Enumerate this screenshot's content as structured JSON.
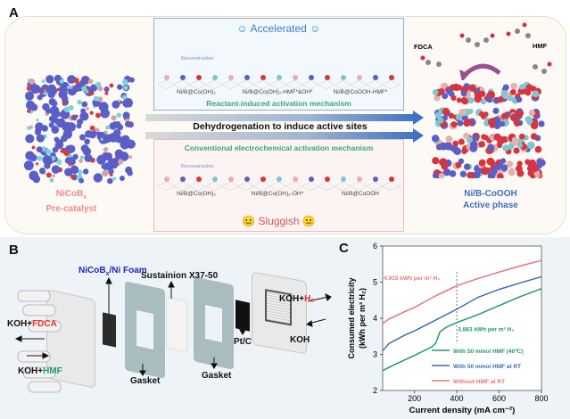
{
  "panels": {
    "a": "A",
    "b": "B",
    "c": "C"
  },
  "panel_a": {
    "precatalyst": {
      "name": "NiCoB",
      "subscript": "x",
      "label": "Pre-catalyst"
    },
    "accelerated": {
      "title": "Accelerated",
      "icon": "smiley-face-icon",
      "mechanism": "Reactant-induced activation mechanism",
      "reconstruction": "Reconstruction",
      "states": [
        "Ni/B@Co(OH)₂",
        "Ni/B@Co(OH)₂-HMF*&OH*",
        "Ni/B@CoOOH-HMF*"
      ]
    },
    "arrow_text": "Dehydrogenation to induce active sites",
    "sluggish": {
      "title": "Sluggish",
      "icon": "neutral-face-icon",
      "mechanism": "Conventional electrochemical activation mechanism",
      "reconstruction": "Reconstruction",
      "states": [
        "Ni/B@Co(OH)₂",
        "Ni/B@Co(OH)₂-OH*",
        "Ni/B@CoOOH"
      ]
    },
    "active": {
      "name": "Ni/B-CoOOH",
      "label": "Active phase"
    },
    "fdca": "FDCA",
    "hmf": "HMF"
  },
  "panel_b": {
    "foam": {
      "main": "NiCoB",
      "sub": "x",
      "rest": "/Ni Foam"
    },
    "membrane": "Sustainion X37-50",
    "gasket1": "Gasket",
    "gasket2": "Gasket",
    "ptc": "Pt/C",
    "koh_fdca": {
      "a": "KOH+",
      "b": "FDCA"
    },
    "koh_hmf": {
      "a": "KOH+",
      "b": "HMF"
    },
    "koh_h2": {
      "a": "KOH+",
      "b": "H₂"
    },
    "koh": "KOH"
  },
  "colors": {
    "red": "#e8737a",
    "blue": "#3a6fb5",
    "green": "#1f9a6a",
    "accent_text_red": "#e83030",
    "accent_text_green": "#1f9a6a"
  },
  "chart_data": {
    "type": "line",
    "xlabel": "Current density (mA cm⁻²)",
    "ylabel": "Consumed electricity (kWh per m³ H₂)",
    "xlim": [
      50,
      800
    ],
    "ylim": [
      2,
      6
    ],
    "xticks": [
      "200",
      "400",
      "600",
      "800"
    ],
    "yticks": [
      "2",
      "3",
      "4",
      "5",
      "6"
    ],
    "legend": "bottom-right",
    "series": [
      {
        "name": "With 50 mmol HMF (40℃)",
        "color": "#1f9a6a",
        "x": [
          50,
          100,
          200,
          280,
          300,
          310,
          320,
          350,
          400,
          500,
          600,
          700,
          800
        ],
        "y": [
          2.55,
          2.7,
          2.97,
          3.2,
          3.3,
          3.45,
          3.62,
          3.75,
          3.88,
          4.1,
          4.35,
          4.6,
          4.82
        ]
      },
      {
        "name": "With 50 mmol HMF at RT",
        "color": "#3a6fb5",
        "x": [
          50,
          80,
          150,
          200,
          300,
          400,
          500,
          600,
          700,
          800
        ],
        "y": [
          3.1,
          3.3,
          3.52,
          3.65,
          3.95,
          4.25,
          4.58,
          4.8,
          4.98,
          5.15
        ]
      },
      {
        "name": "Without HMF at RT",
        "color": "#e8737a",
        "x": [
          50,
          80,
          150,
          200,
          300,
          400,
          500,
          600,
          700,
          800
        ],
        "y": [
          3.85,
          3.98,
          4.17,
          4.3,
          4.62,
          4.9,
          5.1,
          5.28,
          5.45,
          5.6
        ]
      }
    ],
    "annotations": [
      {
        "text": "4.915 kWh per m³ H₂",
        "x": 400,
        "y": 4.915
      },
      {
        "text": "3.883 kWh per m³ H₂",
        "x": 400,
        "y": 3.883
      }
    ],
    "reference_line_x": 400
  }
}
